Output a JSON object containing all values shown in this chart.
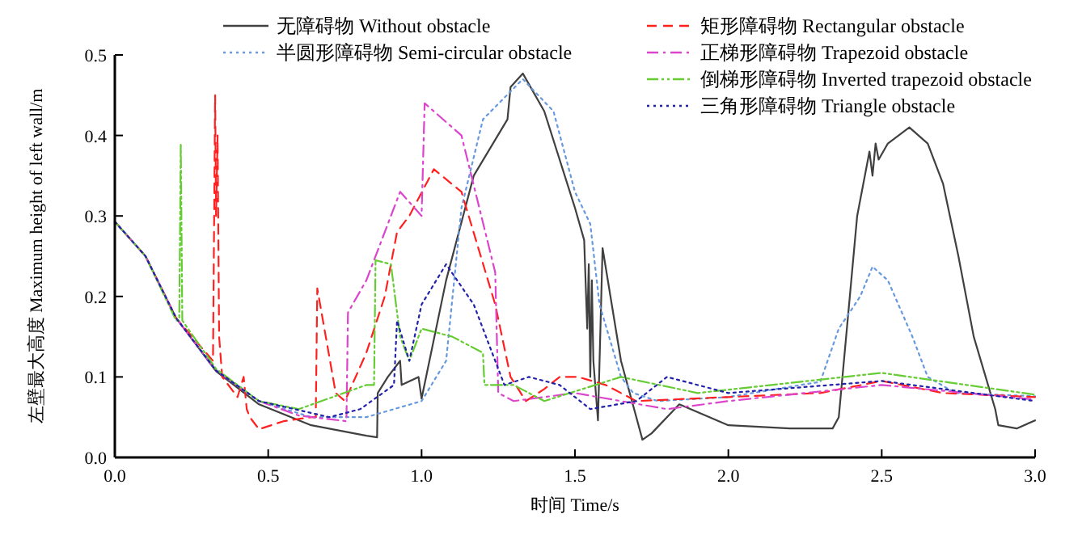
{
  "chart_data": {
    "type": "line",
    "xlabel": "时间 Time/s",
    "ylabel": "左壁最大高度 Maximum height of left wall/m",
    "xlim": [
      0,
      3
    ],
    "ylim": [
      0,
      0.5
    ],
    "xticks": [
      {
        "value": 0,
        "label": "0.0"
      },
      {
        "value": 0.5,
        "label": "0.5"
      },
      {
        "value": 1,
        "label": "1.0"
      },
      {
        "value": 1.5,
        "label": "1.5"
      },
      {
        "value": 2,
        "label": "2.0"
      },
      {
        "value": 2.5,
        "label": "2.5"
      },
      {
        "value": 3,
        "label": "3.0"
      }
    ],
    "yticks": [
      {
        "value": 0,
        "label": "0.0"
      },
      {
        "value": 0.1,
        "label": "0.1"
      },
      {
        "value": 0.2,
        "label": "0.2"
      },
      {
        "value": 0.3,
        "label": "0.3"
      },
      {
        "value": 0.4,
        "label": "0.4"
      },
      {
        "value": 0.5,
        "label": "0.5"
      }
    ],
    "grid": false,
    "legend": "top",
    "marker": "none",
    "series": [
      {
        "name": "无障碍物 Without obstacle",
        "color": "#404040",
        "line_style": "solid",
        "x": [
          0,
          0.1,
          0.2,
          0.33,
          0.47,
          0.64,
          0.82,
          0.855,
          0.857,
          0.89,
          0.93,
          0.935,
          0.99,
          1.0,
          1.08,
          1.17,
          1.28,
          1.29,
          1.33,
          1.4,
          1.5,
          1.53,
          1.54,
          1.545,
          1.55,
          1.555,
          1.56,
          1.575,
          1.59,
          1.65,
          1.72,
          1.75,
          1.84,
          2.0,
          2.2,
          2.34,
          2.36,
          2.42,
          2.45,
          2.46,
          2.47,
          2.48,
          2.49,
          2.52,
          2.59,
          2.65,
          2.7,
          2.75,
          2.8,
          2.87,
          2.88,
          2.94,
          3.0
        ],
        "values": [
          0.293,
          0.25,
          0.173,
          0.107,
          0.066,
          0.04,
          0.027,
          0.025,
          0.08,
          0.1,
          0.12,
          0.09,
          0.1,
          0.073,
          0.22,
          0.35,
          0.42,
          0.46,
          0.477,
          0.43,
          0.31,
          0.27,
          0.16,
          0.24,
          0.1,
          0.22,
          0.12,
          0.046,
          0.26,
          0.12,
          0.022,
          0.03,
          0.066,
          0.04,
          0.036,
          0.036,
          0.05,
          0.3,
          0.36,
          0.38,
          0.35,
          0.39,
          0.37,
          0.39,
          0.41,
          0.39,
          0.34,
          0.25,
          0.15,
          0.06,
          0.04,
          0.036,
          0.046
        ]
      },
      {
        "name": "半圆形障碍物 Semi-circular obstacle",
        "color": "#6699dd",
        "line_style": "dotted",
        "x": [
          0,
          0.1,
          0.2,
          0.33,
          0.47,
          0.64,
          0.82,
          1.0,
          1.08,
          1.13,
          1.2,
          1.33,
          1.43,
          1.5,
          1.55,
          1.58,
          1.65,
          1.69,
          1.77,
          2.0,
          2.3,
          2.36,
          2.43,
          2.47,
          2.52,
          2.6,
          2.65,
          2.74,
          3.0
        ],
        "values": [
          0.293,
          0.25,
          0.173,
          0.108,
          0.07,
          0.05,
          0.05,
          0.07,
          0.12,
          0.31,
          0.42,
          0.47,
          0.43,
          0.33,
          0.29,
          0.19,
          0.1,
          0.08,
          0.07,
          0.075,
          0.094,
          0.16,
          0.2,
          0.237,
          0.22,
          0.15,
          0.1,
          0.08,
          0.076
        ]
      },
      {
        "name": "矩形障碍物 Rectangular obstacle",
        "color": "#ff2020",
        "line_style": "dashed",
        "x": [
          0,
          0.1,
          0.2,
          0.32,
          0.327,
          0.33,
          0.335,
          0.34,
          0.35,
          0.4,
          0.42,
          0.43,
          0.44,
          0.47,
          0.55,
          0.64,
          0.655,
          0.66,
          0.72,
          0.75,
          0.82,
          0.88,
          0.92,
          0.96,
          1.04,
          1.13,
          1.24,
          1.29,
          1.34,
          1.4,
          1.45,
          1.51,
          1.6,
          1.7,
          2.0,
          2.3,
          2.5,
          2.7,
          3.0
        ],
        "values": [
          0.293,
          0.25,
          0.173,
          0.12,
          0.45,
          0.3,
          0.4,
          0.15,
          0.1,
          0.075,
          0.1,
          0.06,
          0.05,
          0.035,
          0.045,
          0.05,
          0.05,
          0.21,
          0.08,
          0.07,
          0.13,
          0.2,
          0.28,
          0.3,
          0.358,
          0.33,
          0.19,
          0.1,
          0.07,
          0.085,
          0.1,
          0.1,
          0.09,
          0.07,
          0.075,
          0.08,
          0.095,
          0.08,
          0.075
        ]
      },
      {
        "name": "正梯形障碍物 Trapezoid obstacle",
        "color": "#dd44cc",
        "line_style": "dashdot",
        "x": [
          0,
          0.1,
          0.2,
          0.33,
          0.47,
          0.6,
          0.755,
          0.76,
          0.82,
          0.93,
          1.0,
          1.01,
          1.13,
          1.24,
          1.25,
          1.3,
          1.5,
          1.8,
          2.0,
          2.5,
          3.0
        ],
        "values": [
          0.293,
          0.25,
          0.173,
          0.108,
          0.07,
          0.052,
          0.045,
          0.18,
          0.22,
          0.33,
          0.3,
          0.44,
          0.4,
          0.23,
          0.08,
          0.07,
          0.08,
          0.06,
          0.07,
          0.09,
          0.072
        ]
      },
      {
        "name": "倒梯形障碍物 Inverted trapezoid obstacle",
        "color": "#66cc33",
        "line_style": "dashdotdot",
        "x": [
          0,
          0.1,
          0.2,
          0.21,
          0.215,
          0.22,
          0.33,
          0.47,
          0.6,
          0.82,
          0.845,
          0.85,
          0.9,
          0.93,
          0.96,
          1.0,
          1.1,
          1.2,
          1.205,
          1.3,
          1.4,
          1.65,
          1.9,
          2.5,
          3.0
        ],
        "values": [
          0.293,
          0.25,
          0.17,
          0.17,
          0.39,
          0.17,
          0.11,
          0.07,
          0.06,
          0.09,
          0.09,
          0.245,
          0.24,
          0.15,
          0.12,
          0.16,
          0.15,
          0.13,
          0.09,
          0.09,
          0.07,
          0.1,
          0.08,
          0.105,
          0.078
        ]
      },
      {
        "name": "三角形障碍物 Triangle obstacle",
        "color": "#2222aa",
        "line_style": "dotted",
        "x": [
          0,
          0.1,
          0.2,
          0.33,
          0.47,
          0.7,
          0.8,
          0.91,
          0.92,
          0.96,
          1.0,
          1.08,
          1.17,
          1.27,
          1.35,
          1.45,
          1.55,
          1.7,
          1.8,
          2.0,
          2.5,
          3.0
        ],
        "values": [
          0.293,
          0.25,
          0.173,
          0.108,
          0.07,
          0.05,
          0.06,
          0.09,
          0.17,
          0.12,
          0.19,
          0.24,
          0.19,
          0.09,
          0.1,
          0.09,
          0.06,
          0.07,
          0.1,
          0.08,
          0.095,
          0.07
        ]
      }
    ]
  }
}
